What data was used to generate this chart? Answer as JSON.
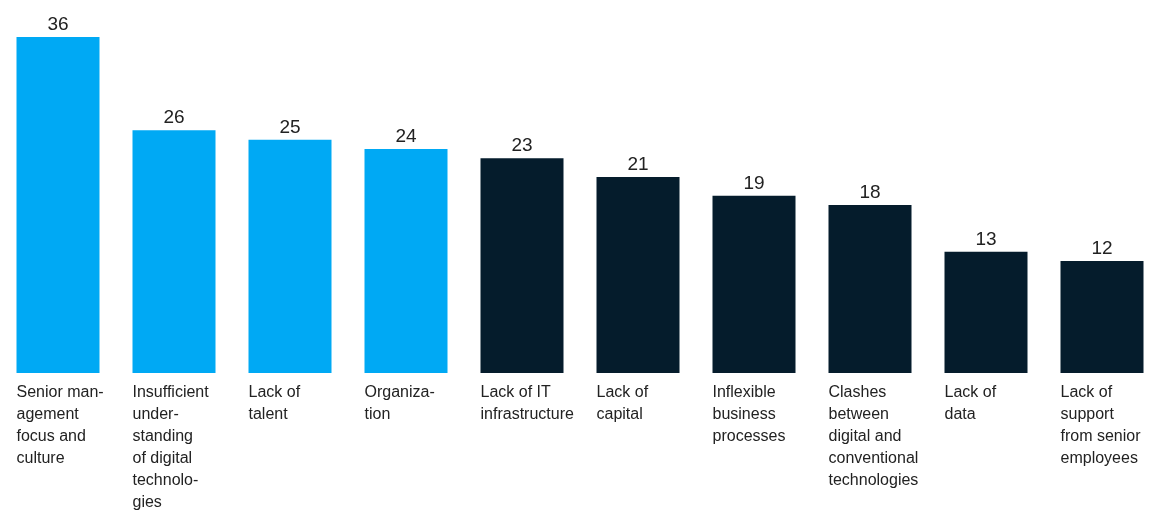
{
  "chart_data": {
    "type": "bar",
    "categories": [
      "Senior man-\nagement\nfocus and\nculture",
      "Insufficient\nunder-\nstanding\nof digital\ntechnolo-\ngies",
      "Lack of\ntalent",
      "Organiza-\ntion",
      "Lack of IT\ninfrastructure",
      "Lack of\ncapital",
      "Inflexible\nbusiness\nprocesses",
      "Clashes\nbetween\ndigital and\nconventional\ntechnologies",
      "Lack of\ndata",
      "Lack of\nsupport\nfrom senior\nemployees"
    ],
    "values": [
      36,
      26,
      25,
      24,
      23,
      21,
      19,
      18,
      13,
      12
    ],
    "colors": [
      "#00a9f4",
      "#00a9f4",
      "#00a9f4",
      "#00a9f4",
      "#051c2c",
      "#051c2c",
      "#051c2c",
      "#051c2c",
      "#051c2c",
      "#051c2c"
    ],
    "ylim": [
      0,
      36
    ],
    "data_labels": true
  }
}
